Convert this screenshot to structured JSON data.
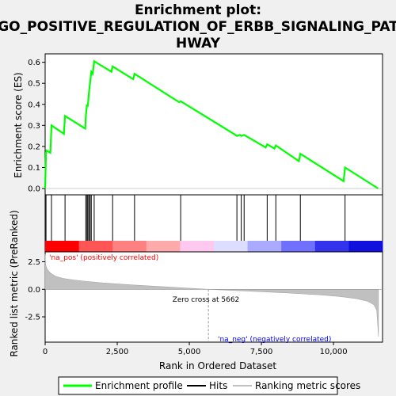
{
  "chart_data": {
    "type": "line",
    "title_lines": [
      "Enrichment plot:",
      "GO_POSITIVE_REGULATION_OF_ERBB_SIGNALING_PAT",
      "HWAY"
    ],
    "top_panel": {
      "ylabel": "Enrichment score (ES)",
      "ylim": [
        -0.03,
        0.64
      ],
      "yticks": [
        0.0,
        0.1,
        0.2,
        0.3,
        0.4,
        0.5,
        0.6
      ],
      "ytick_labels": [
        "0.0",
        "0.1",
        "0.2",
        "0.3",
        "0.4",
        "0.5",
        "0.6"
      ],
      "series": [
        {
          "name": "Enrichment profile",
          "color": "#00ff00",
          "x": [
            0,
            30,
            50,
            180,
            220,
            650,
            690,
            1390,
            1410,
            1450,
            1480,
            1520,
            1560,
            1600,
            1650,
            1700,
            2300,
            2340,
            3050,
            3100,
            4650,
            4700,
            6600,
            6650,
            6750,
            6800,
            6900,
            7650,
            7700,
            7950,
            8000,
            8800,
            8850,
            10350,
            10400,
            11550
          ],
          "y": [
            0.0,
            0.17,
            0.18,
            0.17,
            0.3,
            0.26,
            0.345,
            0.285,
            0.34,
            0.4,
            0.39,
            0.455,
            0.505,
            0.555,
            0.545,
            0.605,
            0.555,
            0.58,
            0.52,
            0.545,
            0.41,
            0.415,
            0.255,
            0.25,
            0.255,
            0.25,
            0.255,
            0.195,
            0.21,
            0.19,
            0.205,
            0.13,
            0.165,
            0.035,
            0.1,
            0.0
          ]
        }
      ]
    },
    "hits_panel": {
      "hit_positions": [
        0,
        30,
        220,
        690,
        1410,
        1450,
        1480,
        1520,
        1560,
        1600,
        1700,
        2340,
        3100,
        4700,
        6650,
        6800,
        6900,
        7700,
        8000,
        8850,
        10400
      ],
      "color_bar_stops": [
        "#ff0000",
        "#ff5555",
        "#ff8080",
        "#ffaaaa",
        "#ffc8ee",
        "#ddddff",
        "#aaaaff",
        "#7070ff",
        "#3333ee",
        "#1111dd"
      ]
    },
    "bottom_panel": {
      "ylabel": "Ranked list metric (PreRanked)",
      "xlabel": "Rank in Ordered Dataset",
      "ylim": [
        -4.8,
        3.4
      ],
      "yticks": [
        2.5,
        0.0,
        -2.5
      ],
      "ytick_labels": [
        "2.5",
        "0.0",
        "-2.5"
      ],
      "xlim": [
        0,
        11700
      ],
      "xticks": [
        0,
        2500,
        5000,
        7500,
        10000
      ],
      "xtick_labels": [
        "0",
        "2,500",
        "5,000",
        "7,500",
        "10,000"
      ],
      "metric_x": [
        0,
        20,
        60,
        120,
        200,
        350,
        600,
        1000,
        1500,
        2000,
        3000,
        4000,
        5000,
        5662,
        6500,
        7500,
        8500,
        9500,
        10200,
        10800,
        11200,
        11400,
        11500,
        11560
      ],
      "metric_y": [
        3.2,
        2.2,
        1.9,
        1.65,
        1.45,
        1.2,
        1.0,
        0.85,
        0.7,
        0.58,
        0.4,
        0.25,
        0.1,
        0.0,
        -0.1,
        -0.22,
        -0.35,
        -0.5,
        -0.65,
        -0.85,
        -1.1,
        -1.4,
        -1.9,
        -4.3
      ],
      "zero_cross_rank": 5662,
      "zero_cross_label": "Zero cross at 5662",
      "pos_label": "'na_pos' (positively correlated)",
      "neg_label": "'na_neg' (negatively correlated)",
      "pos_color": "#ff0000",
      "neg_color": "#0000ff"
    },
    "legend": {
      "placement": "bottom",
      "items": [
        {
          "label": "Enrichment profile",
          "color": "#00ff00",
          "kind": "line"
        },
        {
          "label": "Hits",
          "color": "#000000",
          "kind": "line"
        },
        {
          "label": "Ranking metric scores",
          "color": "#c0c0c0",
          "kind": "line"
        }
      ]
    }
  }
}
